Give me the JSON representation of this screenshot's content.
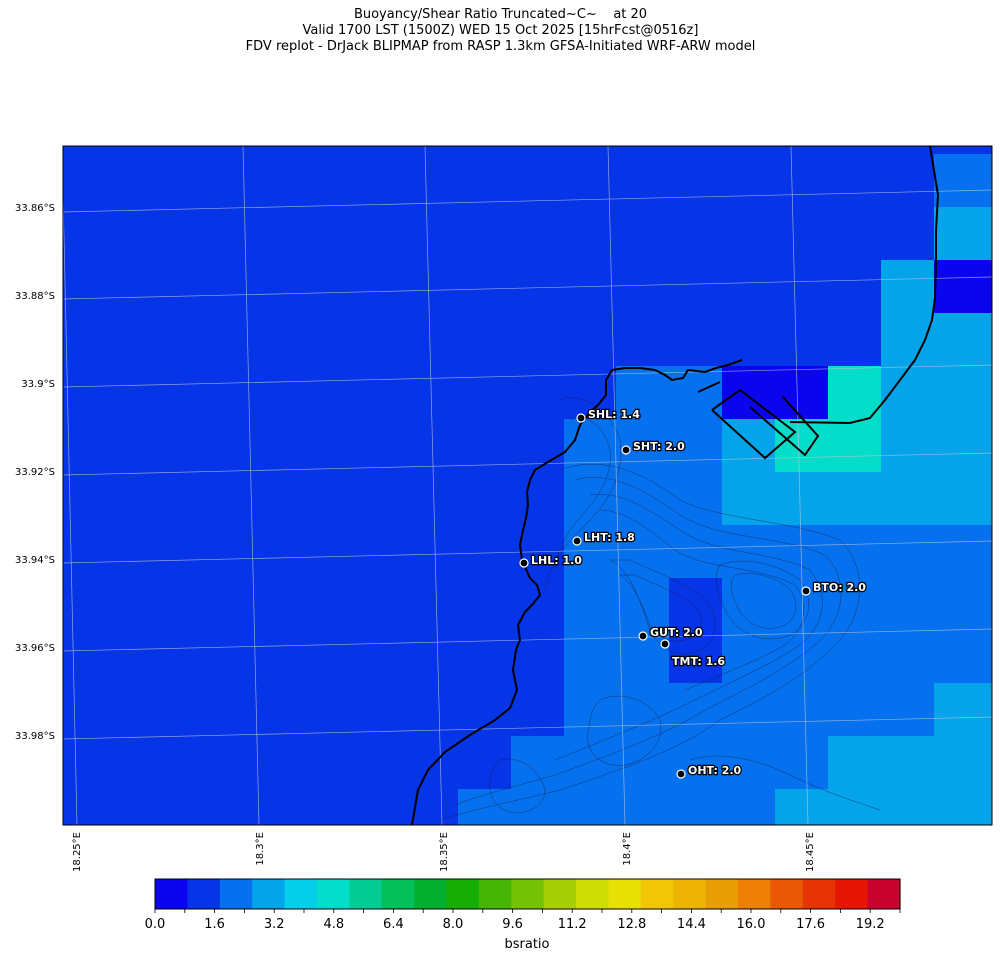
{
  "title": {
    "line1": "Buoyancy/Shear Ratio Truncated~C~    at 20",
    "line2": "Valid 1700 LST (1500Z) WED 15 Oct 2025 [15hrFcst@0516z]",
    "line3": "FDV replot - DrJack BLIPMAP from RASP 1.3km GFSA-Initiated WRF-ARW model"
  },
  "map": {
    "lat_ticks": [
      "33.86°S",
      "33.88°S",
      "33.9°S",
      "33.92°S",
      "33.94°S",
      "33.96°S",
      "33.98°S"
    ],
    "lon_ticks": [
      "18.25°E",
      "18.3°E",
      "18.35°E",
      "18.4°E",
      "18.45°E"
    ],
    "background_color": "#0535e6",
    "gridlines": "on",
    "stations": [
      {
        "name": "SHL",
        "value": "1.4",
        "label": "SHL: 1.4"
      },
      {
        "name": "SHT",
        "value": "2.0",
        "label": "SHT: 2.0"
      },
      {
        "name": "LHT",
        "value": "1.8",
        "label": "LHT: 1.8"
      },
      {
        "name": "LHL",
        "value": "1.0",
        "label": "LHL: 1.0"
      },
      {
        "name": "BTO",
        "value": "2.0",
        "label": "BTO: 2.0"
      },
      {
        "name": "GUT",
        "value": "2.0",
        "label": "GUT: 2.0"
      },
      {
        "name": "TMT",
        "value": "1.6",
        "label": "TMT: 1.6"
      },
      {
        "name": "OHT",
        "value": "2.0",
        "label": "OHT: 2.0"
      }
    ]
  },
  "colorbar": {
    "label": "bsratio",
    "min": 0,
    "max": 20,
    "step": 0.8,
    "tick_labels": [
      "0.0",
      "1.6",
      "3.2",
      "4.8",
      "6.4",
      "8.0",
      "9.6",
      "11.2",
      "12.8",
      "14.4",
      "16.0",
      "17.6",
      "19.2"
    ],
    "colors": [
      "#0a05ee",
      "#0535e6",
      "#0571ee",
      "#04a4ea",
      "#05cfe8",
      "#04ddc9",
      "#04cc94",
      "#04c05a",
      "#05af30",
      "#16ad05",
      "#46b505",
      "#75c105",
      "#a6cf05",
      "#cddd04",
      "#e7e005",
      "#f0c605",
      "#eeb405",
      "#e99d04",
      "#ed7f04",
      "#ea5805",
      "#e73405",
      "#e51604",
      "#c80330"
    ]
  }
}
